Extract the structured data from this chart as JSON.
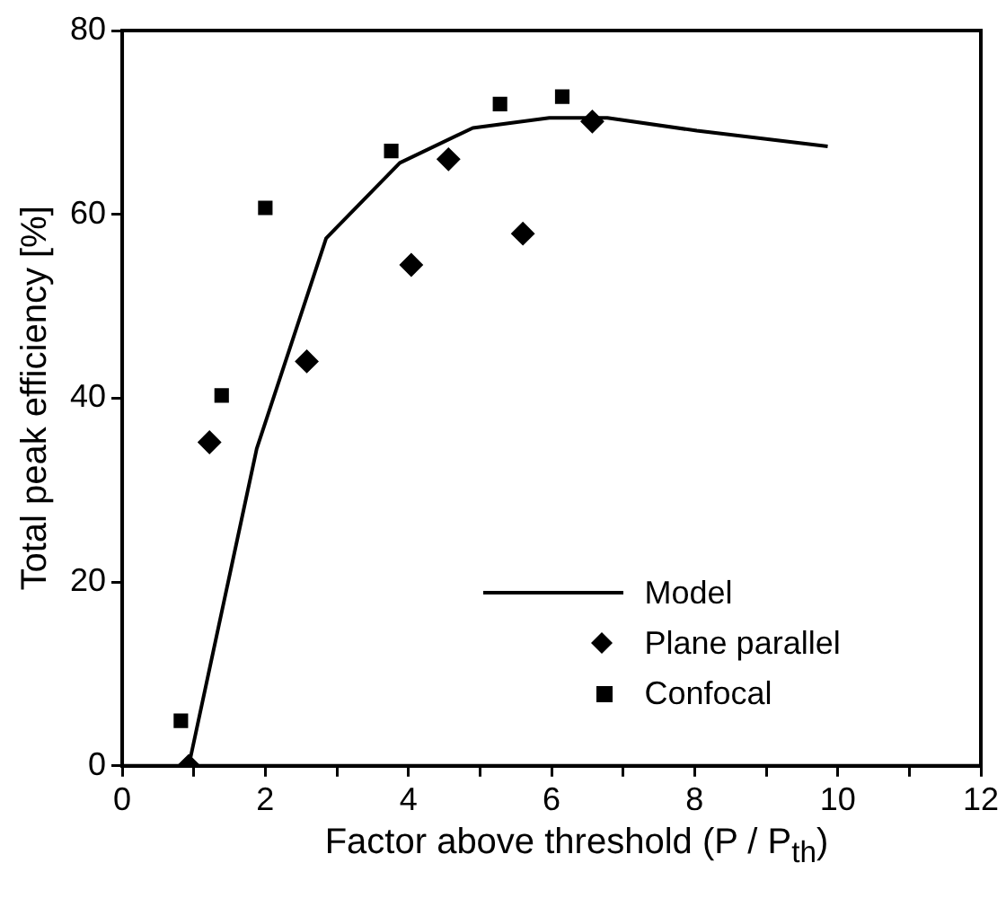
{
  "chart_data": {
    "type": "scatter",
    "xlabel": "Factor above threshold (P / P$_{th}$)",
    "ylabel": "Total peak efficiency [%]",
    "xlim": [
      0,
      12
    ],
    "xticks": [
      0,
      {
        "value": 1,
        "label": null
      },
      2,
      {
        "value": 3,
        "label": null
      },
      4,
      {
        "value": 5,
        "label": null
      },
      6,
      {
        "value": 7,
        "label": null
      },
      8,
      {
        "value": 9,
        "label": null
      },
      10,
      {
        "value": 11,
        "label": null
      },
      12
    ],
    "ylim": [
      0,
      80
    ],
    "yticks": [
      0,
      20,
      40,
      60,
      80
    ],
    "grid": false,
    "legend": "bottom right",
    "series": [
      {
        "name": "Model",
        "type": "line",
        "color": "#000000",
        "marker": "none",
        "line_style": "solid",
        "x": [
          0.93,
          1.88,
          2.85,
          3.88,
          4.9,
          5.97,
          6.78,
          8.03,
          9.86
        ],
        "values": [
          0,
          34.5,
          57.4,
          65.6,
          69.4,
          70.5,
          70.5,
          69.1,
          67.4
        ]
      },
      {
        "name": "Plane parallel",
        "color": "#000000",
        "marker": "diamond",
        "x": [
          0.93,
          1.22,
          2.58,
          4.04,
          4.56,
          5.6,
          6.57
        ],
        "values": [
          0,
          35.2,
          44,
          54.5,
          66,
          57.9,
          70.1
        ]
      },
      {
        "name": "Confocal",
        "color": "#000000",
        "marker": "square",
        "x": [
          0.82,
          1.39,
          2.0,
          3.76,
          5.28,
          6.15
        ],
        "values": [
          4.9,
          40.3,
          60.7,
          66.9,
          72,
          72.8
        ]
      }
    ]
  }
}
